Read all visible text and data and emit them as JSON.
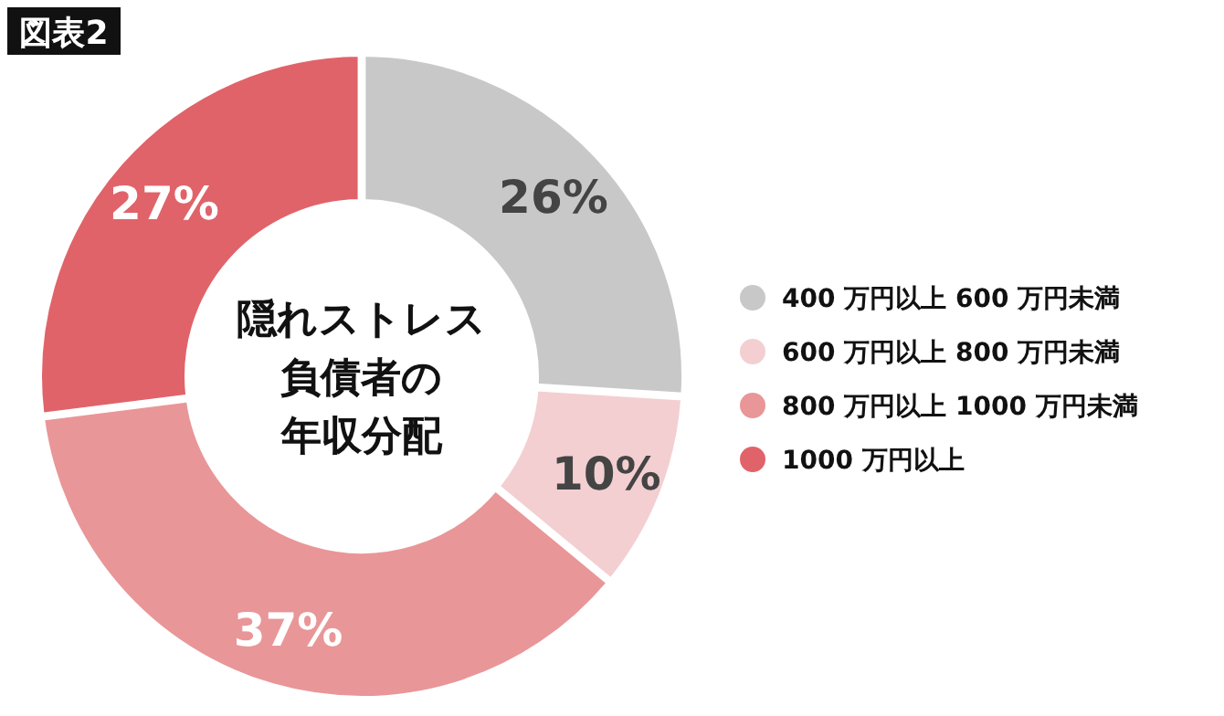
{
  "chart_data": {
    "type": "donut",
    "title": "図表2",
    "annotations": [
      "隠れストレス",
      "負債者の",
      "年収分配"
    ],
    "categories": [
      "400 万円以上 600 万円未満",
      "600 万円以上 800 万円未満",
      "800 万円以上 1000 万円未満",
      "1000 万円以上"
    ],
    "values": [
      26,
      10,
      37,
      27
    ],
    "colors": [
      "#c8c8c8",
      "#f3cfd2",
      "#e99698",
      "#e0636a"
    ],
    "value_labels": [
      "26%",
      "10%",
      "37%",
      "27%"
    ],
    "legend": "right"
  }
}
